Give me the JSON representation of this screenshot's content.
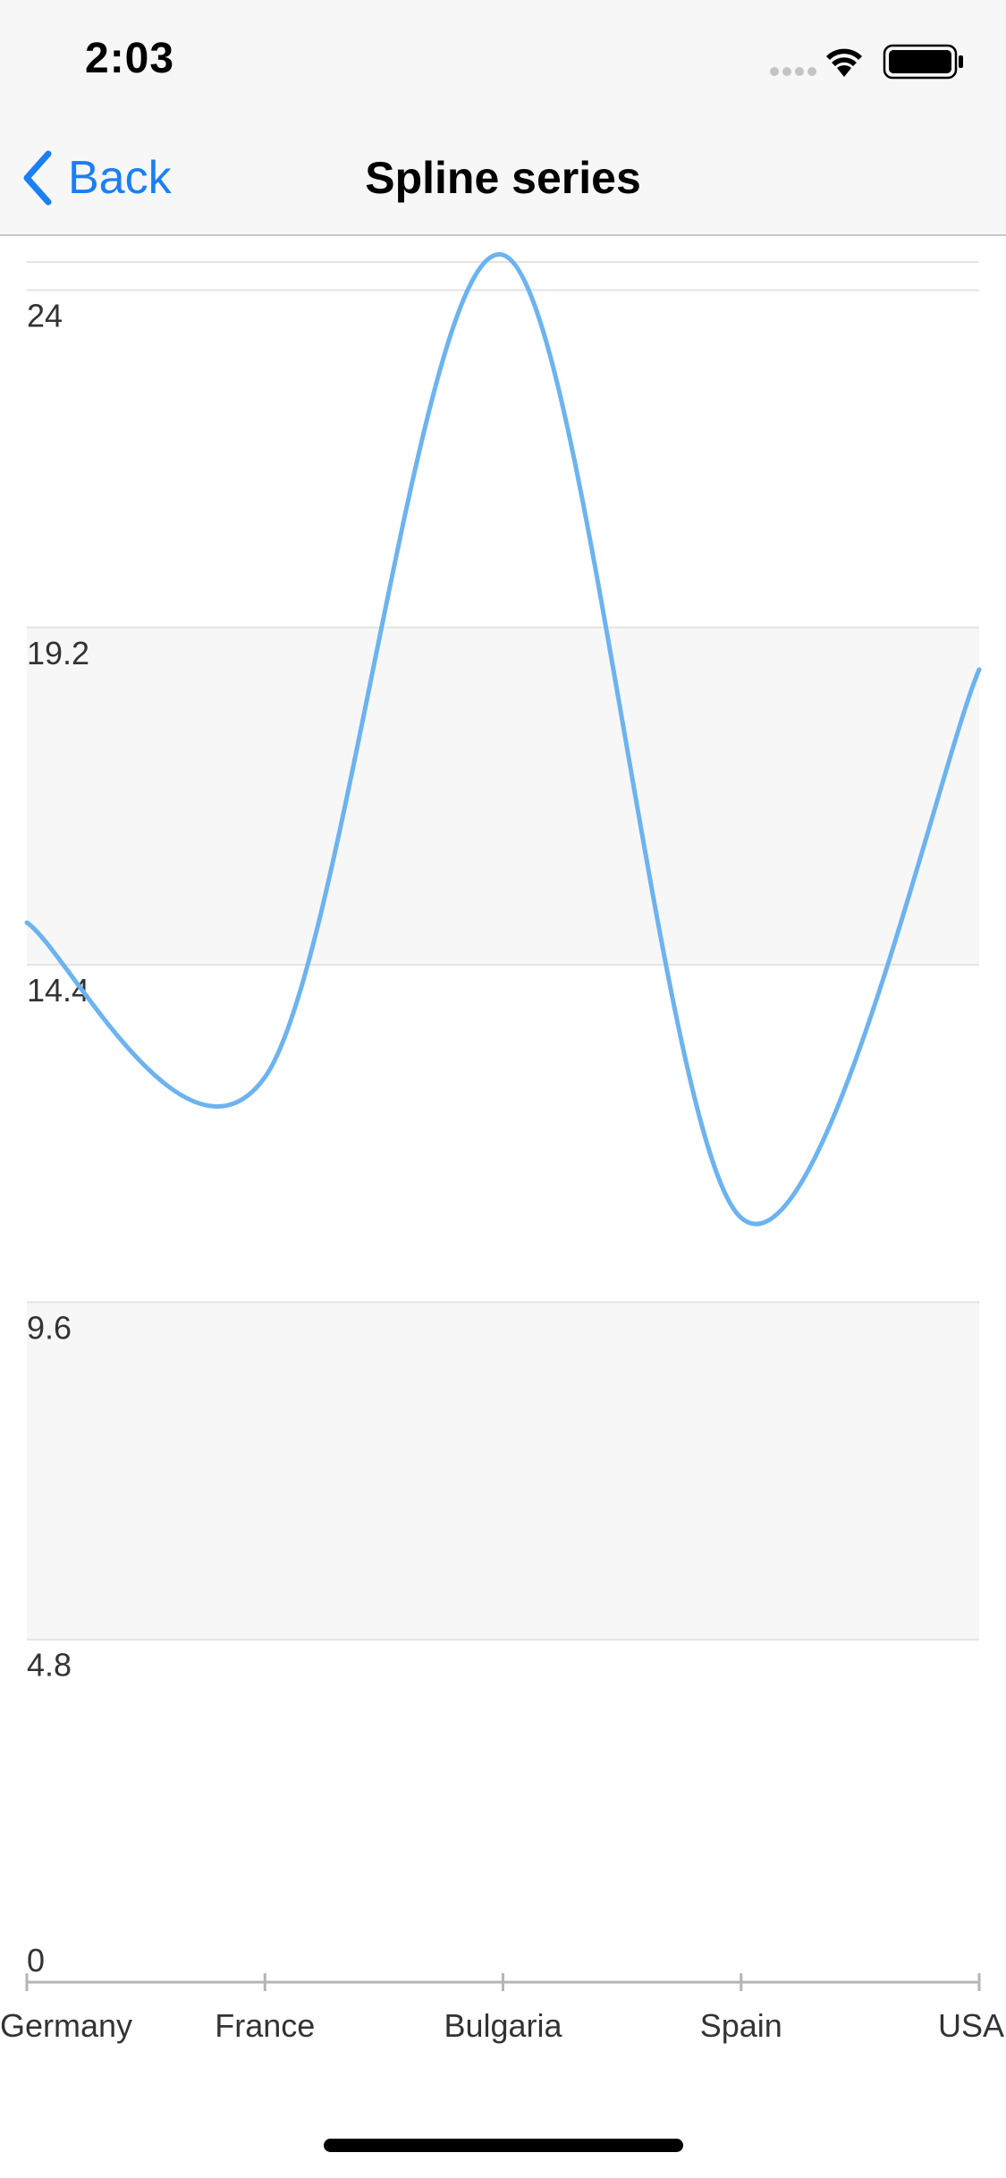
{
  "status_bar": {
    "time": "2:03",
    "icons": [
      "signal-dots-icon",
      "wifi-icon",
      "battery-icon"
    ]
  },
  "nav": {
    "back_label": "Back",
    "title": "Spline series",
    "accent_color": "#1a7ff5"
  },
  "chart_data": {
    "type": "line",
    "smooth": true,
    "categories": [
      "Germany",
      "France",
      "Bulgaria",
      "Spain",
      "USA"
    ],
    "series": [
      {
        "values": [
          15,
          12.8,
          24.5,
          10.8,
          18.6
        ],
        "color": "#6cb3f0"
      }
    ],
    "y_ticks": [
      "0",
      "4.8",
      "9.6",
      "14.4",
      "19.2",
      "24"
    ],
    "ylim": [
      0,
      24.4
    ],
    "grid": true,
    "alternating_bands": true,
    "band_color": "#f7f7f7"
  }
}
